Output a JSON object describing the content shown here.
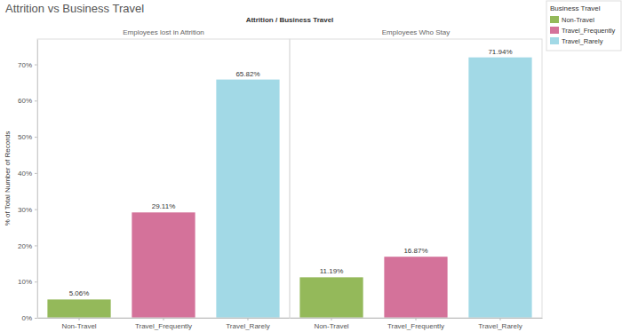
{
  "chart_data": {
    "type": "bar",
    "title": "Attrition vs Business Travel",
    "header": "Attrition / Business Travel",
    "y_label": "% of Total Number of Records",
    "legend_title": "Business Travel",
    "categories": [
      "Non-Travel",
      "Travel_Frequently",
      "Travel_Rarely"
    ],
    "colors": [
      "#94b95a",
      "#d4729a",
      "#a2d9e6"
    ],
    "panels": [
      {
        "title": "Employees lost in Attrition",
        "values": [
          5.06,
          29.11,
          65.82
        ],
        "value_labels": [
          "5.06%",
          "29.11%",
          "65.82%"
        ]
      },
      {
        "title": "Employees Who Stay",
        "values": [
          11.19,
          16.87,
          71.94
        ],
        "value_labels": [
          "11.19%",
          "16.87%",
          "71.94%"
        ]
      }
    ],
    "ylim": [
      0,
      77
    ],
    "yticks": [
      {
        "value": 0,
        "label": "0%"
      },
      {
        "value": 10,
        "label": "10%"
      },
      {
        "value": 20,
        "label": "20%"
      },
      {
        "value": 30,
        "label": "30%"
      },
      {
        "value": 40,
        "label": "40%"
      },
      {
        "value": 50,
        "label": "50%"
      },
      {
        "value": 60,
        "label": "60%"
      },
      {
        "value": 70,
        "label": "70%"
      }
    ],
    "grid": false,
    "data_labels": true,
    "legend": "top-right"
  }
}
